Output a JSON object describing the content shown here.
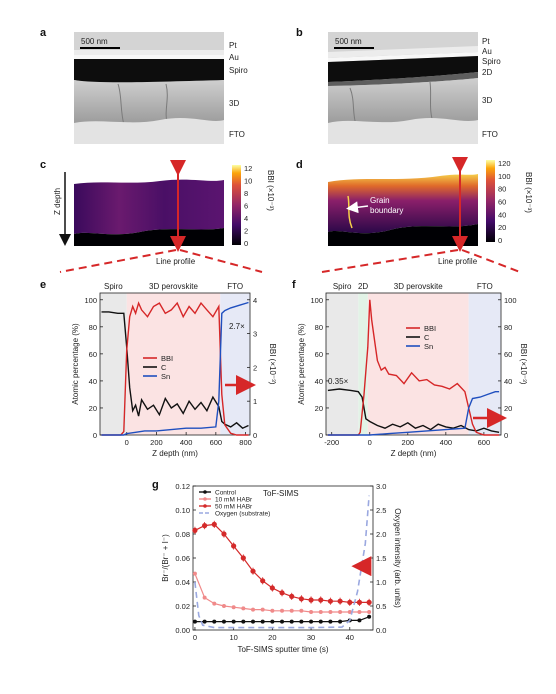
{
  "panels": {
    "a": {
      "label": "a",
      "scale": "500 nm",
      "layers": [
        "Pt",
        "Au",
        "Spiro",
        "3D",
        "FTO"
      ]
    },
    "b": {
      "label": "b",
      "scale": "500 nm",
      "layers": [
        "Pt",
        "Au",
        "Spiro",
        "2D",
        "3D",
        "FTO"
      ]
    },
    "c": {
      "label": "c",
      "cbar_ticks": [
        "12",
        "10",
        "8",
        "6",
        "4",
        "2",
        "0"
      ],
      "cbar_label": "BBI (×10⁻³)",
      "ylabel": "Z depth",
      "profile": "Line profile"
    },
    "d": {
      "label": "d",
      "cbar_ticks": [
        "120",
        "100",
        "80",
        "60",
        "40",
        "20",
        "0"
      ],
      "cbar_label": "BBI (×10⁻³)",
      "annotation": "Grain\nboundary",
      "profile": "Line profile"
    },
    "e": {
      "label": "e",
      "regions": [
        "Spiro",
        "3D perovskite",
        "FTO"
      ],
      "ylabel": "Atomic percentage (%)",
      "y2label": "BBI (×10⁻³)",
      "xlabel": "Z depth (nm)",
      "ratio": "2.7×",
      "legend": [
        "BBI",
        "C",
        "Sn"
      ]
    },
    "f": {
      "label": "f",
      "regions": [
        "Spiro",
        "2D",
        "3D perovskite",
        "FTO"
      ],
      "ylabel": "Atomic percentage (%)",
      "y2label": "BBI (×10⁻³)",
      "xlabel": "Z depth (nm)",
      "ratio": "0.35×",
      "legend": [
        "BBI",
        "C",
        "Sn"
      ]
    },
    "g": {
      "label": "g",
      "title": "ToF-SIMS",
      "ylabel": "Br⁻/(Br⁻ + I⁻)",
      "y2label": "Oxygen intensity (arb. units)",
      "xlabel": "ToF-SIMS sputter time (s)",
      "legend": [
        "Control",
        "10 mM HABr",
        "50 mM HABr",
        "Oxygen (substrate)"
      ]
    }
  },
  "colors": {
    "bbi": "#d62728",
    "c": "#111111",
    "sn": "#1f4fbf",
    "control": "#111111",
    "h10": "#f08a8a",
    "h50": "#d42a2a",
    "oxygen": "#9aa8e0"
  },
  "chart_data": [
    {
      "type": "line",
      "id": "e",
      "title": "",
      "xlabel": "Z depth (nm)",
      "ylabel": "Atomic percentage (%)",
      "y2label": "BBI (×10⁻³)",
      "xlim": [
        -180,
        830
      ],
      "ylim": [
        0,
        105
      ],
      "y2lim": [
        0,
        4.2
      ],
      "xticks": [
        0,
        200,
        400,
        600,
        800
      ],
      "yticks": [
        0,
        20,
        40,
        60,
        80,
        100
      ],
      "y2ticks": [
        0,
        1,
        2,
        3,
        4
      ],
      "regions": [
        {
          "label": "Spiro",
          "from": -180,
          "to": 0
        },
        {
          "label": "3D perovskite",
          "from": 0,
          "to": 630
        },
        {
          "label": "FTO",
          "from": 630,
          "to": 830
        }
      ],
      "series": [
        {
          "name": "C",
          "axis": "left",
          "x": [
            -170,
            -120,
            -60,
            -20,
            0,
            20,
            40,
            60,
            80,
            100,
            140,
            180,
            220,
            260,
            300,
            340,
            380,
            420,
            460,
            500,
            540,
            580,
            620,
            640,
            660,
            700,
            740,
            780,
            820
          ],
          "y": [
            91,
            91,
            90,
            90,
            65,
            35,
            18,
            22,
            14,
            26,
            19,
            22,
            15,
            27,
            20,
            23,
            16,
            25,
            19,
            24,
            18,
            28,
            21,
            10,
            8,
            6,
            9,
            5,
            7
          ]
        },
        {
          "name": "BBI",
          "axis": "right",
          "x": [
            -170,
            -40,
            -20,
            0,
            20,
            40,
            60,
            80,
            100,
            140,
            180,
            220,
            260,
            300,
            340,
            380,
            420,
            460,
            500,
            540,
            580,
            620,
            640,
            660,
            700,
            740,
            780,
            820
          ],
          "y": [
            0,
            0,
            0.1,
            2.5,
            3.5,
            3.8,
            3.6,
            3.9,
            3.7,
            3.5,
            3.8,
            3.9,
            3.6,
            3.7,
            3.9,
            3.5,
            3.8,
            3.6,
            3.9,
            3.7,
            3.5,
            3.8,
            1.2,
            0.3,
            0.05,
            0,
            0,
            0
          ]
        },
        {
          "name": "Sn",
          "axis": "left",
          "x": [
            -170,
            -20,
            0,
            60,
            120,
            200,
            300,
            400,
            500,
            600,
            620,
            640,
            660,
            700,
            760,
            820
          ],
          "y": [
            0,
            0,
            1,
            2,
            3,
            3,
            4,
            5,
            5,
            6,
            25,
            90,
            92,
            94,
            96,
            98
          ]
        }
      ]
    },
    {
      "type": "line",
      "id": "f",
      "title": "",
      "xlabel": "Z depth (nm)",
      "ylabel": "Atomic percentage (%)",
      "y2label": "BBI (×10⁻³)",
      "xlim": [
        -230,
        690
      ],
      "ylim": [
        0,
        105
      ],
      "y2lim": [
        0,
        105
      ],
      "xticks": [
        -200,
        0,
        200,
        400,
        600
      ],
      "yticks": [
        0,
        20,
        40,
        60,
        80,
        100
      ],
      "y2ticks": [
        0,
        20,
        40,
        60,
        80,
        100
      ],
      "regions": [
        {
          "label": "Spiro",
          "from": -230,
          "to": -60
        },
        {
          "label": "2D",
          "from": -60,
          "to": -10
        },
        {
          "label": "3D perovskite",
          "from": -10,
          "to": 520
        },
        {
          "label": "FTO",
          "from": 520,
          "to": 690
        }
      ],
      "series": [
        {
          "name": "C",
          "axis": "left",
          "x": [
            -220,
            -160,
            -100,
            -60,
            -40,
            -20,
            0,
            40,
            80,
            120,
            160,
            200,
            240,
            280,
            320,
            360,
            400,
            440,
            480,
            520,
            560,
            600,
            640,
            680
          ],
          "y": [
            33,
            34,
            33,
            32,
            28,
            12,
            10,
            7,
            5,
            8,
            6,
            9,
            5,
            7,
            4,
            8,
            6,
            5,
            7,
            4,
            3,
            5,
            3,
            2
          ]
        },
        {
          "name": "BBI",
          "axis": "right",
          "x": [
            -220,
            -60,
            -50,
            -30,
            -10,
            0,
            10,
            20,
            40,
            60,
            80,
            100,
            140,
            180,
            220,
            260,
            300,
            340,
            380,
            420,
            460,
            500,
            520,
            540,
            560,
            600,
            640,
            680
          ],
          "y": [
            0,
            0,
            2,
            30,
            65,
            100,
            85,
            75,
            55,
            48,
            50,
            45,
            44,
            38,
            46,
            40,
            41,
            37,
            36,
            34,
            38,
            32,
            20,
            8,
            2,
            0,
            0,
            0
          ]
        },
        {
          "name": "Sn",
          "axis": "right",
          "x": [
            -220,
            -20,
            0,
            100,
            200,
            300,
            400,
            500,
            520,
            540,
            580,
            620,
            660,
            680
          ],
          "y": [
            0,
            0,
            0,
            1,
            2,
            3,
            4,
            5,
            20,
            27,
            28,
            30,
            32,
            32
          ]
        }
      ]
    },
    {
      "type": "line",
      "id": "g",
      "title": "ToF-SIMS",
      "xlabel": "ToF-SIMS sputter time (s)",
      "ylabel": "Br⁻/(Br⁻ + I⁻)",
      "y2label": "Oxygen intensity (arb. units)",
      "xlim": [
        -0.5,
        46
      ],
      "ylim": [
        0,
        0.12
      ],
      "y2lim": [
        0,
        3.0
      ],
      "xticks": [
        0,
        10,
        20,
        30,
        40
      ],
      "yticks": [
        0,
        0.02,
        0.04,
        0.06,
        0.08,
        0.1,
        0.12
      ],
      "y2ticks": [
        0,
        0.5,
        1.0,
        1.5,
        2.0,
        2.5,
        3.0
      ],
      "series": [
        {
          "name": "Control",
          "axis": "left",
          "x": [
            0,
            2.5,
            5,
            7.5,
            10,
            12.5,
            15,
            17.5,
            20,
            22.5,
            25,
            27.5,
            30,
            32.5,
            35,
            37.5,
            40,
            42.5,
            45
          ],
          "y": [
            0.007,
            0.007,
            0.007,
            0.007,
            0.007,
            0.007,
            0.007,
            0.007,
            0.007,
            0.007,
            0.007,
            0.007,
            0.007,
            0.007,
            0.007,
            0.007,
            0.008,
            0.008,
            0.011
          ]
        },
        {
          "name": "10 mM HABr",
          "axis": "left",
          "x": [
            0,
            2.5,
            5,
            7.5,
            10,
            12.5,
            15,
            17.5,
            20,
            22.5,
            25,
            27.5,
            30,
            32.5,
            35,
            37.5,
            40,
            42.5,
            45
          ],
          "y": [
            0.047,
            0.027,
            0.022,
            0.02,
            0.019,
            0.018,
            0.017,
            0.017,
            0.016,
            0.016,
            0.016,
            0.016,
            0.015,
            0.015,
            0.015,
            0.015,
            0.015,
            0.015,
            0.015
          ]
        },
        {
          "name": "50 mM HABr",
          "axis": "left",
          "x": [
            0,
            2.5,
            5,
            7.5,
            10,
            12.5,
            15,
            17.5,
            20,
            22.5,
            25,
            27.5,
            30,
            32.5,
            35,
            37.5,
            40,
            42.5,
            45
          ],
          "y": [
            0.083,
            0.087,
            0.088,
            0.08,
            0.07,
            0.06,
            0.049,
            0.041,
            0.035,
            0.031,
            0.028,
            0.026,
            0.025,
            0.025,
            0.024,
            0.024,
            0.023,
            0.023,
            0.023
          ]
        },
        {
          "name": "Oxygen (substrate)",
          "axis": "right",
          "x": [
            0,
            1,
            2,
            5,
            10,
            20,
            30,
            38,
            40,
            42,
            44,
            45
          ],
          "y": [
            1.0,
            0.3,
            0.1,
            0.05,
            0.05,
            0.05,
            0.05,
            0.06,
            0.2,
            0.8,
            1.8,
            2.8
          ]
        }
      ]
    }
  ]
}
